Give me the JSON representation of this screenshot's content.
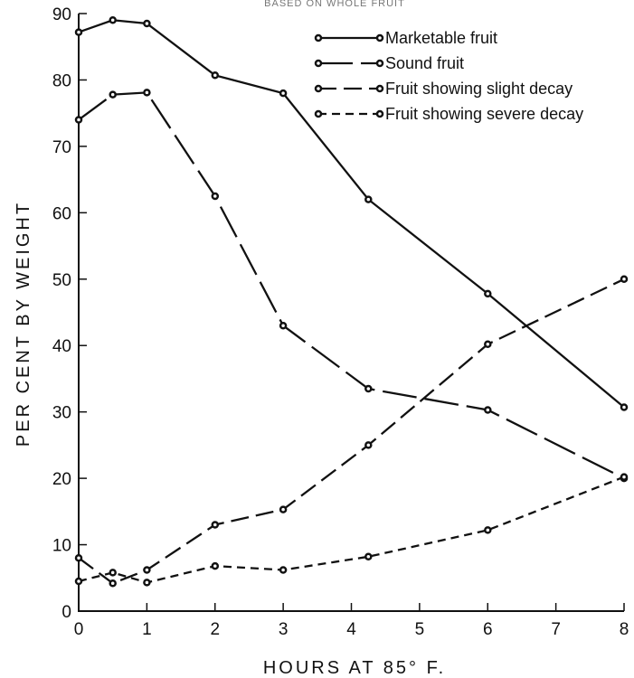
{
  "top_caption": "BASED ON WHOLE FRUIT",
  "chart_data": {
    "type": "line",
    "title": "",
    "xlabel": "HOURS AT 85° F.",
    "ylabel": "PER CENT BY WEIGHT",
    "xlim": [
      0,
      8
    ],
    "ylim": [
      0,
      90
    ],
    "x_ticks": [
      0,
      1,
      2,
      3,
      4,
      5,
      6,
      7,
      8
    ],
    "y_ticks": [
      0,
      10,
      20,
      30,
      40,
      50,
      60,
      70,
      80,
      90
    ],
    "grid": false,
    "legend_position": "top-right",
    "series": [
      {
        "name": "Marketable fruit",
        "style": "solid",
        "points": [
          [
            0,
            87.2
          ],
          [
            0.5,
            89.0
          ],
          [
            1,
            88.5
          ],
          [
            2,
            80.7
          ],
          [
            3,
            78.0
          ],
          [
            4.25,
            62.0
          ],
          [
            6,
            47.8
          ],
          [
            8,
            30.7
          ]
        ]
      },
      {
        "name": "Sound fruit",
        "style": "long-dash",
        "points": [
          [
            0,
            74.0
          ],
          [
            0.5,
            77.8
          ],
          [
            1,
            78.1
          ],
          [
            2,
            62.5
          ],
          [
            3,
            43.0
          ],
          [
            4.25,
            33.5
          ],
          [
            6,
            30.3
          ],
          [
            8,
            20.0
          ]
        ]
      },
      {
        "name": "Fruit showing slight decay",
        "style": "dash",
        "points": [
          [
            0,
            8.0
          ],
          [
            0.5,
            4.2
          ],
          [
            1,
            6.2
          ],
          [
            2,
            13.0
          ],
          [
            3,
            15.3
          ],
          [
            4.25,
            25.0
          ],
          [
            6,
            40.2
          ],
          [
            8,
            50.0
          ]
        ]
      },
      {
        "name": "Fruit showing severe decay",
        "style": "short-dash",
        "points": [
          [
            0,
            4.5
          ],
          [
            0.5,
            5.8
          ],
          [
            1,
            4.3
          ],
          [
            2,
            6.8
          ],
          [
            3,
            6.2
          ],
          [
            4.25,
            8.2
          ],
          [
            6,
            12.2
          ],
          [
            8,
            20.2
          ]
        ]
      }
    ]
  }
}
